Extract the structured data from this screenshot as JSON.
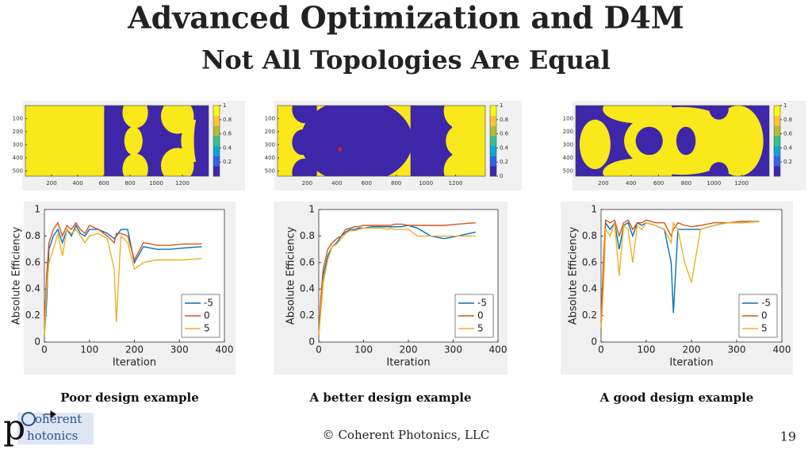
{
  "title": "Advanced Optimization and D4M",
  "subtitle": "Not All Topologies Are Equal",
  "footer": {
    "copyright": "© Coherent Photonics, LLC",
    "page_number": "19",
    "logo_top": "oherent",
    "logo_bottom": "hotonics",
    "logo_letter": "p"
  },
  "topologies": [
    {
      "xlim": [
        0,
        1400
      ],
      "ylim": [
        0,
        540
      ],
      "xticks": [
        200,
        400,
        600,
        800,
        1000,
        1200
      ],
      "yticks": [
        100,
        200,
        300,
        400,
        500
      ],
      "clim": [
        0,
        1
      ],
      "cticks": [
        0.2,
        0.4,
        0.6,
        0.8,
        1
      ]
    },
    {
      "xlim": [
        0,
        1400
      ],
      "ylim": [
        0,
        540
      ],
      "xticks": [
        200,
        400,
        600,
        800,
        1000,
        1200
      ],
      "yticks": [
        100,
        200,
        300,
        400,
        500
      ],
      "clim": [
        0,
        1
      ],
      "cticks": [
        0,
        0.2,
        0.4,
        0.6,
        0.8,
        1
      ]
    },
    {
      "xlim": [
        0,
        1400
      ],
      "ylim": [
        0,
        540
      ],
      "xticks": [
        200,
        400,
        600,
        800,
        1000,
        1200
      ],
      "yticks": [
        100,
        200,
        300,
        400,
        500
      ],
      "clim": [
        0,
        1
      ],
      "cticks": [
        0.2,
        0.4,
        0.6,
        0.8,
        1
      ]
    }
  ],
  "chart_data": [
    {
      "type": "line",
      "caption": "Poor design example",
      "xlabel": "Iteration",
      "ylabel": "Absolute Efficiency",
      "xlim": [
        0,
        400
      ],
      "ylim": [
        0,
        1
      ],
      "xticks": [
        0,
        100,
        200,
        300,
        400
      ],
      "yticks": [
        0,
        0.2,
        0.4,
        0.6,
        0.8,
        1
      ],
      "legend": "lower right",
      "x": [
        0,
        5,
        10,
        20,
        30,
        40,
        50,
        60,
        70,
        80,
        90,
        100,
        120,
        140,
        155,
        160,
        170,
        185,
        200,
        220,
        250,
        280,
        310,
        350
      ],
      "series": [
        {
          "name": "-5",
          "color": "#0072bd",
          "values": [
            0.05,
            0.3,
            0.7,
            0.8,
            0.85,
            0.75,
            0.85,
            0.8,
            0.88,
            0.82,
            0.8,
            0.85,
            0.85,
            0.82,
            0.78,
            0.8,
            0.85,
            0.85,
            0.6,
            0.72,
            0.7,
            0.7,
            0.71,
            0.72
          ]
        },
        {
          "name": "0",
          "color": "#d95319",
          "values": [
            0.1,
            0.5,
            0.75,
            0.85,
            0.9,
            0.8,
            0.88,
            0.85,
            0.9,
            0.85,
            0.82,
            0.88,
            0.85,
            0.8,
            0.75,
            0.82,
            0.82,
            0.8,
            0.62,
            0.75,
            0.73,
            0.73,
            0.74,
            0.74
          ]
        },
        {
          "name": "5",
          "color": "#edb120",
          "values": [
            0.05,
            0.4,
            0.6,
            0.7,
            0.82,
            0.65,
            0.85,
            0.82,
            0.85,
            0.8,
            0.75,
            0.8,
            0.82,
            0.78,
            0.55,
            0.15,
            0.8,
            0.75,
            0.55,
            0.6,
            0.62,
            0.62,
            0.62,
            0.63
          ]
        }
      ]
    },
    {
      "type": "line",
      "caption": "A better design example",
      "xlabel": "Iteration",
      "ylabel": "Absolute Efficiency",
      "xlim": [
        0,
        400
      ],
      "ylim": [
        0,
        1
      ],
      "xticks": [
        0,
        100,
        200,
        300,
        400
      ],
      "yticks": [
        0,
        0.2,
        0.4,
        0.6,
        0.8,
        1
      ],
      "legend": "lower right",
      "x": [
        0,
        5,
        10,
        20,
        30,
        40,
        50,
        60,
        70,
        80,
        90,
        100,
        120,
        140,
        155,
        160,
        170,
        185,
        200,
        220,
        250,
        280,
        310,
        350
      ],
      "series": [
        {
          "name": "-5",
          "color": "#0072bd",
          "values": [
            0.05,
            0.3,
            0.5,
            0.65,
            0.72,
            0.75,
            0.8,
            0.83,
            0.85,
            0.85,
            0.86,
            0.86,
            0.87,
            0.87,
            0.87,
            0.87,
            0.87,
            0.87,
            0.88,
            0.86,
            0.8,
            0.78,
            0.8,
            0.83
          ]
        },
        {
          "name": "0",
          "color": "#d95319",
          "values": [
            0.05,
            0.35,
            0.55,
            0.7,
            0.75,
            0.78,
            0.8,
            0.85,
            0.86,
            0.87,
            0.87,
            0.88,
            0.88,
            0.88,
            0.88,
            0.88,
            0.89,
            0.89,
            0.88,
            0.88,
            0.88,
            0.88,
            0.89,
            0.9
          ]
        },
        {
          "name": "5",
          "color": "#edb120",
          "values": [
            0.05,
            0.25,
            0.45,
            0.62,
            0.72,
            0.74,
            0.78,
            0.82,
            0.84,
            0.84,
            0.85,
            0.86,
            0.86,
            0.86,
            0.85,
            0.86,
            0.85,
            0.85,
            0.85,
            0.8,
            0.8,
            0.8,
            0.8,
            0.8
          ]
        }
      ]
    },
    {
      "type": "line",
      "caption": "A good design example",
      "xlabel": "Iteration",
      "ylabel": "Absolute Efficiency",
      "xlim": [
        0,
        400
      ],
      "ylim": [
        0,
        1
      ],
      "xticks": [
        0,
        100,
        200,
        300,
        400
      ],
      "yticks": [
        0,
        0.2,
        0.4,
        0.6,
        0.8,
        1
      ],
      "legend": "lower right",
      "x": [
        0,
        5,
        10,
        20,
        30,
        40,
        50,
        60,
        70,
        80,
        90,
        100,
        120,
        140,
        155,
        160,
        170,
        185,
        200,
        220,
        250,
        280,
        310,
        350
      ],
      "series": [
        {
          "name": "-5",
          "color": "#0072bd",
          "values": [
            0.1,
            0.5,
            0.9,
            0.85,
            0.9,
            0.7,
            0.88,
            0.9,
            0.8,
            0.9,
            0.88,
            0.9,
            0.88,
            0.85,
            0.6,
            0.22,
            0.85,
            0.85,
            0.85,
            0.85,
            0.88,
            0.9,
            0.9,
            0.91
          ]
        },
        {
          "name": "0",
          "color": "#d95319",
          "values": [
            0.15,
            0.6,
            0.92,
            0.9,
            0.92,
            0.8,
            0.9,
            0.92,
            0.85,
            0.9,
            0.9,
            0.92,
            0.9,
            0.9,
            0.8,
            0.85,
            0.9,
            0.88,
            0.87,
            0.88,
            0.9,
            0.9,
            0.91,
            0.91
          ]
        },
        {
          "name": "5",
          "color": "#edb120",
          "values": [
            0.1,
            0.4,
            0.85,
            0.8,
            0.9,
            0.5,
            0.88,
            0.85,
            0.6,
            0.88,
            0.85,
            0.9,
            0.88,
            0.85,
            0.75,
            0.9,
            0.85,
            0.6,
            0.45,
            0.85,
            0.88,
            0.9,
            0.9,
            0.91
          ]
        }
      ]
    }
  ]
}
